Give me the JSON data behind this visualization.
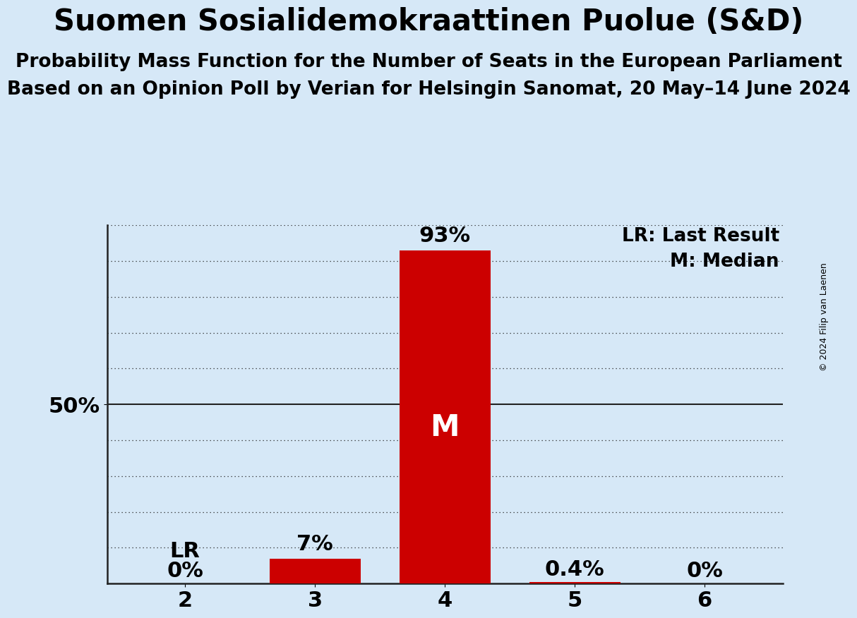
{
  "title": "Suomen Sosialidemokraattinen Puolue (S&D)",
  "subtitle1": "Probability Mass Function for the Number of Seats in the European Parliament",
  "subtitle2": "Based on an Opinion Poll by Verian for Helsingin Sanomat, 20 May–14 June 2024",
  "copyright": "© 2024 Filip van Laenen",
  "categories": [
    2,
    3,
    4,
    5,
    6
  ],
  "values": [
    0.0,
    0.07,
    0.93,
    0.004,
    0.0
  ],
  "bar_color": "#CC0000",
  "background_color": "#D6E8F7",
  "bar_labels": [
    "0%",
    "7%",
    "93%",
    "0.4%",
    "0%"
  ],
  "median_seat": 4,
  "last_result_seat": 2,
  "median_label": "M",
  "lr_label": "LR",
  "legend_lr": "LR: Last Result",
  "legend_m": "M: Median",
  "ylabel_50": "50%",
  "ylim": [
    0,
    1.0
  ],
  "ytick_50": 0.5,
  "title_fontsize": 30,
  "subtitle_fontsize": 19,
  "tick_fontsize": 22,
  "bar_label_fontsize": 22,
  "legend_fontsize": 19,
  "copyright_fontsize": 9,
  "median_fontsize": 30
}
